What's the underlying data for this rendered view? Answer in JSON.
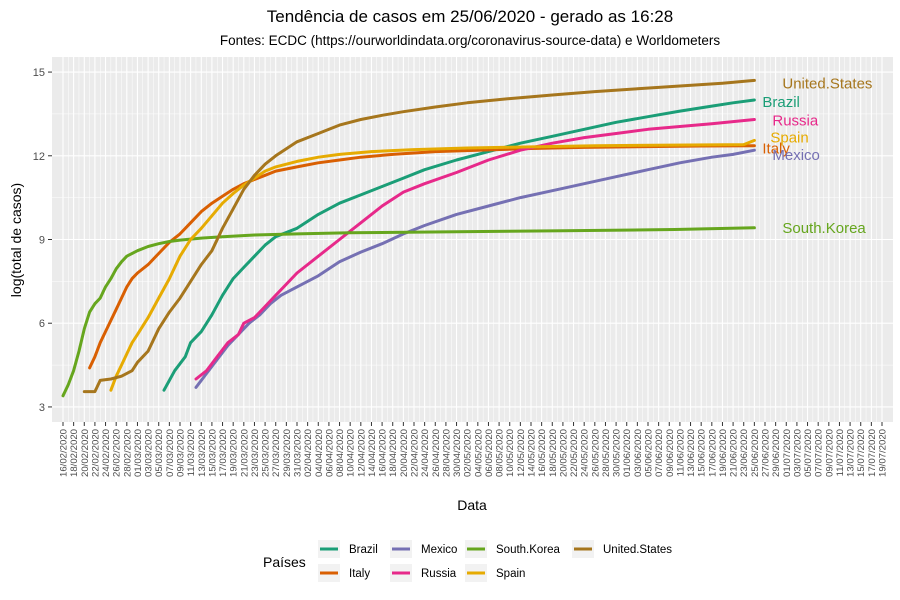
{
  "chart_data": {
    "type": "line",
    "title": "Tendência de casos em 25/06/2020 - gerado as 16:28",
    "subtitle": "Fontes: ECDC (https://ourworldindata.org/coronavirus-source-data) e Worldometers",
    "xlabel": "Data",
    "ylabel": "log(total de casos)",
    "ylim": [
      3,
      15
    ],
    "yticks": [
      3,
      6,
      9,
      12,
      15
    ],
    "x_start": "16/02/2020",
    "x_end": "19/07/2020",
    "x_tick_labels": [
      "16/02/2020",
      "18/02/2020",
      "20/02/2020",
      "22/02/2020",
      "24/02/2020",
      "26/02/2020",
      "28/02/2020",
      "01/03/2020",
      "03/03/2020",
      "05/03/2020",
      "07/03/2020",
      "09/03/2020",
      "11/03/2020",
      "13/03/2020",
      "15/03/2020",
      "17/03/2020",
      "19/03/2020",
      "21/03/2020",
      "23/03/2020",
      "25/03/2020",
      "27/03/2020",
      "29/03/2020",
      "31/03/2020",
      "02/04/2020",
      "04/04/2020",
      "06/04/2020",
      "08/04/2020",
      "10/04/2020",
      "12/04/2020",
      "14/04/2020",
      "16/04/2020",
      "18/04/2020",
      "20/04/2020",
      "22/04/2020",
      "24/04/2020",
      "26/04/2020",
      "28/04/2020",
      "30/04/2020",
      "02/05/2020",
      "04/05/2020",
      "06/05/2020",
      "08/05/2020",
      "10/05/2020",
      "12/05/2020",
      "14/05/2020",
      "16/05/2020",
      "18/05/2020",
      "20/05/2020",
      "22/05/2020",
      "24/05/2020",
      "26/05/2020",
      "28/05/2020",
      "30/05/2020",
      "01/06/2020",
      "03/06/2020",
      "05/06/2020",
      "07/06/2020",
      "09/06/2020",
      "11/06/2020",
      "13/06/2020",
      "15/06/2020",
      "17/06/2020",
      "19/06/2020",
      "21/06/2020",
      "23/06/2020",
      "25/06/2020",
      "27/06/2020",
      "29/06/2020",
      "01/07/2020",
      "03/07/2020",
      "05/07/2020",
      "07/07/2020",
      "09/07/2020",
      "11/07/2020",
      "13/07/2020",
      "15/07/2020",
      "17/07/2020",
      "19/07/2020"
    ],
    "grid": true,
    "legend": {
      "title": "Países",
      "position": "bottom"
    },
    "series": [
      {
        "name": "Brazil",
        "color": "#1b9e77",
        "end_label": "Brazil",
        "points": [
          [
            "06/03/2020",
            3.6
          ],
          [
            "08/03/2020",
            4.3
          ],
          [
            "10/03/2020",
            4.8
          ],
          [
            "11/03/2020",
            5.3
          ],
          [
            "13/03/2020",
            5.7
          ],
          [
            "15/03/2020",
            6.3
          ],
          [
            "17/03/2020",
            7.0
          ],
          [
            "19/03/2020",
            7.6
          ],
          [
            "21/03/2020",
            8.0
          ],
          [
            "23/03/2020",
            8.4
          ],
          [
            "25/03/2020",
            8.8
          ],
          [
            "27/03/2020",
            9.1
          ],
          [
            "31/03/2020",
            9.4
          ],
          [
            "04/04/2020",
            9.9
          ],
          [
            "08/04/2020",
            10.3
          ],
          [
            "12/04/2020",
            10.6
          ],
          [
            "16/04/2020",
            10.9
          ],
          [
            "20/04/2020",
            11.2
          ],
          [
            "24/04/2020",
            11.5
          ],
          [
            "30/04/2020",
            11.85
          ],
          [
            "06/05/2020",
            12.15
          ],
          [
            "12/05/2020",
            12.45
          ],
          [
            "18/05/2020",
            12.7
          ],
          [
            "24/05/2020",
            12.95
          ],
          [
            "30/05/2020",
            13.2
          ],
          [
            "05/06/2020",
            13.4
          ],
          [
            "11/06/2020",
            13.6
          ],
          [
            "17/06/2020",
            13.78
          ],
          [
            "21/06/2020",
            13.9
          ],
          [
            "25/06/2020",
            14.0
          ]
        ]
      },
      {
        "name": "Italy",
        "color": "#d95f02",
        "end_label": "Italy",
        "points": [
          [
            "21/02/2020",
            4.4
          ],
          [
            "22/02/2020",
            4.8
          ],
          [
            "23/02/2020",
            5.3
          ],
          [
            "24/02/2020",
            5.7
          ],
          [
            "25/02/2020",
            6.1
          ],
          [
            "26/02/2020",
            6.5
          ],
          [
            "27/02/2020",
            6.9
          ],
          [
            "28/02/2020",
            7.3
          ],
          [
            "29/02/2020",
            7.6
          ],
          [
            "01/03/2020",
            7.8
          ],
          [
            "03/03/2020",
            8.1
          ],
          [
            "05/03/2020",
            8.5
          ],
          [
            "07/03/2020",
            8.9
          ],
          [
            "09/03/2020",
            9.2
          ],
          [
            "11/03/2020",
            9.6
          ],
          [
            "13/03/2020",
            10.0
          ],
          [
            "15/03/2020",
            10.3
          ],
          [
            "17/03/2020",
            10.55
          ],
          [
            "19/03/2020",
            10.8
          ],
          [
            "21/03/2020",
            11.0
          ],
          [
            "23/03/2020",
            11.15
          ],
          [
            "25/03/2020",
            11.3
          ],
          [
            "27/03/2020",
            11.45
          ],
          [
            "31/03/2020",
            11.6
          ],
          [
            "04/04/2020",
            11.75
          ],
          [
            "08/04/2020",
            11.85
          ],
          [
            "12/04/2020",
            11.95
          ],
          [
            "18/04/2020",
            12.05
          ],
          [
            "26/04/2020",
            12.15
          ],
          [
            "04/05/2020",
            12.2
          ],
          [
            "14/05/2020",
            12.26
          ],
          [
            "24/05/2020",
            12.3
          ],
          [
            "05/06/2020",
            12.33
          ],
          [
            "15/06/2020",
            12.35
          ],
          [
            "25/06/2020",
            12.36
          ]
        ]
      },
      {
        "name": "Mexico",
        "color": "#7570b3",
        "end_label": "Mexico",
        "points": [
          [
            "12/03/2020",
            3.7
          ],
          [
            "14/03/2020",
            4.2
          ],
          [
            "16/03/2020",
            4.7
          ],
          [
            "18/03/2020",
            5.2
          ],
          [
            "20/03/2020",
            5.6
          ],
          [
            "22/03/2020",
            6.0
          ],
          [
            "24/03/2020",
            6.3
          ],
          [
            "26/03/2020",
            6.7
          ],
          [
            "28/03/2020",
            7.0
          ],
          [
            "31/03/2020",
            7.3
          ],
          [
            "04/04/2020",
            7.7
          ],
          [
            "08/04/2020",
            8.2
          ],
          [
            "12/04/2020",
            8.55
          ],
          [
            "16/04/2020",
            8.85
          ],
          [
            "20/04/2020",
            9.2
          ],
          [
            "24/04/2020",
            9.5
          ],
          [
            "30/04/2020",
            9.9
          ],
          [
            "06/05/2020",
            10.2
          ],
          [
            "12/05/2020",
            10.5
          ],
          [
            "18/05/2020",
            10.75
          ],
          [
            "24/05/2020",
            11.0
          ],
          [
            "30/05/2020",
            11.25
          ],
          [
            "05/06/2020",
            11.5
          ],
          [
            "11/06/2020",
            11.75
          ],
          [
            "17/06/2020",
            11.95
          ],
          [
            "21/06/2020",
            12.05
          ],
          [
            "25/06/2020",
            12.2
          ]
        ]
      },
      {
        "name": "Russia",
        "color": "#e7298a",
        "end_label": "Russia",
        "points": [
          [
            "12/03/2020",
            4.0
          ],
          [
            "14/03/2020",
            4.3
          ],
          [
            "16/03/2020",
            4.8
          ],
          [
            "18/03/2020",
            5.3
          ],
          [
            "20/03/2020",
            5.6
          ],
          [
            "21/03/2020",
            6.0
          ],
          [
            "23/03/2020",
            6.2
          ],
          [
            "25/03/2020",
            6.6
          ],
          [
            "27/03/2020",
            7.0
          ],
          [
            "29/03/2020",
            7.4
          ],
          [
            "31/03/2020",
            7.8
          ],
          [
            "04/04/2020",
            8.4
          ],
          [
            "08/04/2020",
            9.0
          ],
          [
            "12/04/2020",
            9.6
          ],
          [
            "16/04/2020",
            10.2
          ],
          [
            "20/04/2020",
            10.7
          ],
          [
            "24/04/2020",
            11.0
          ],
          [
            "30/04/2020",
            11.4
          ],
          [
            "06/05/2020",
            11.85
          ],
          [
            "12/05/2020",
            12.2
          ],
          [
            "18/05/2020",
            12.45
          ],
          [
            "24/05/2020",
            12.65
          ],
          [
            "30/05/2020",
            12.8
          ],
          [
            "05/06/2020",
            12.95
          ],
          [
            "11/06/2020",
            13.05
          ],
          [
            "17/06/2020",
            13.15
          ],
          [
            "25/06/2020",
            13.3
          ]
        ]
      },
      {
        "name": "South.Korea",
        "color": "#66a61e",
        "end_label": "South.Korea",
        "points": [
          [
            "16/02/2020",
            3.4
          ],
          [
            "17/02/2020",
            3.8
          ],
          [
            "18/02/2020",
            4.3
          ],
          [
            "19/02/2020",
            5.0
          ],
          [
            "20/02/2020",
            5.8
          ],
          [
            "21/02/2020",
            6.4
          ],
          [
            "22/02/2020",
            6.7
          ],
          [
            "23/02/2020",
            6.9
          ],
          [
            "24/02/2020",
            7.3
          ],
          [
            "25/02/2020",
            7.6
          ],
          [
            "26/02/2020",
            7.95
          ],
          [
            "27/02/2020",
            8.2
          ],
          [
            "28/02/2020",
            8.4
          ],
          [
            "01/03/2020",
            8.6
          ],
          [
            "03/03/2020",
            8.75
          ],
          [
            "05/03/2020",
            8.85
          ],
          [
            "07/03/2020",
            8.93
          ],
          [
            "09/03/2020",
            8.98
          ],
          [
            "13/03/2020",
            9.05
          ],
          [
            "17/03/2020",
            9.1
          ],
          [
            "23/03/2020",
            9.16
          ],
          [
            "31/03/2020",
            9.2
          ],
          [
            "10/04/2020",
            9.24
          ],
          [
            "30/04/2020",
            9.28
          ],
          [
            "20/05/2020",
            9.31
          ],
          [
            "10/06/2020",
            9.36
          ],
          [
            "25/06/2020",
            9.42
          ]
        ]
      },
      {
        "name": "Spain",
        "color": "#e6ab02",
        "end_label": "Spain",
        "points": [
          [
            "25/02/2020",
            3.6
          ],
          [
            "26/02/2020",
            4.1
          ],
          [
            "27/02/2020",
            4.5
          ],
          [
            "28/02/2020",
            4.9
          ],
          [
            "29/02/2020",
            5.3
          ],
          [
            "01/03/2020",
            5.6
          ],
          [
            "03/03/2020",
            6.2
          ],
          [
            "05/03/2020",
            6.9
          ],
          [
            "07/03/2020",
            7.6
          ],
          [
            "09/03/2020",
            8.4
          ],
          [
            "11/03/2020",
            9.0
          ],
          [
            "13/03/2020",
            9.4
          ],
          [
            "15/03/2020",
            9.85
          ],
          [
            "17/03/2020",
            10.3
          ],
          [
            "19/03/2020",
            10.65
          ],
          [
            "21/03/2020",
            10.95
          ],
          [
            "23/03/2020",
            11.2
          ],
          [
            "25/03/2020",
            11.45
          ],
          [
            "27/03/2020",
            11.6
          ],
          [
            "31/03/2020",
            11.8
          ],
          [
            "04/04/2020",
            11.95
          ],
          [
            "08/04/2020",
            12.05
          ],
          [
            "14/04/2020",
            12.15
          ],
          [
            "22/04/2020",
            12.22
          ],
          [
            "02/05/2020",
            12.28
          ],
          [
            "14/05/2020",
            12.32
          ],
          [
            "26/05/2020",
            12.36
          ],
          [
            "06/06/2020",
            12.38
          ],
          [
            "16/06/2020",
            12.39
          ],
          [
            "23/06/2020",
            12.4
          ],
          [
            "25/06/2020",
            12.55
          ]
        ]
      },
      {
        "name": "United.States",
        "color": "#a6761d",
        "end_label": "United.States",
        "points": [
          [
            "20/02/2020",
            3.55
          ],
          [
            "22/02/2020",
            3.55
          ],
          [
            "23/02/2020",
            3.95
          ],
          [
            "25/02/2020",
            4.0
          ],
          [
            "27/02/2020",
            4.1
          ],
          [
            "29/02/2020",
            4.3
          ],
          [
            "01/03/2020",
            4.6
          ],
          [
            "03/03/2020",
            5.0
          ],
          [
            "05/03/2020",
            5.8
          ],
          [
            "07/03/2020",
            6.4
          ],
          [
            "09/03/2020",
            6.9
          ],
          [
            "11/03/2020",
            7.5
          ],
          [
            "13/03/2020",
            8.1
          ],
          [
            "15/03/2020",
            8.6
          ],
          [
            "17/03/2020",
            9.4
          ],
          [
            "19/03/2020",
            10.1
          ],
          [
            "21/03/2020",
            10.8
          ],
          [
            "23/03/2020",
            11.3
          ],
          [
            "25/03/2020",
            11.7
          ],
          [
            "27/03/2020",
            12.0
          ],
          [
            "31/03/2020",
            12.5
          ],
          [
            "04/04/2020",
            12.8
          ],
          [
            "08/04/2020",
            13.1
          ],
          [
            "12/04/2020",
            13.3
          ],
          [
            "16/04/2020",
            13.45
          ],
          [
            "20/04/2020",
            13.58
          ],
          [
            "26/04/2020",
            13.75
          ],
          [
            "02/05/2020",
            13.9
          ],
          [
            "10/05/2020",
            14.05
          ],
          [
            "18/05/2020",
            14.18
          ],
          [
            "26/05/2020",
            14.3
          ],
          [
            "03/06/2020",
            14.4
          ],
          [
            "11/06/2020",
            14.5
          ],
          [
            "19/06/2020",
            14.6
          ],
          [
            "25/06/2020",
            14.7
          ]
        ]
      }
    ]
  }
}
